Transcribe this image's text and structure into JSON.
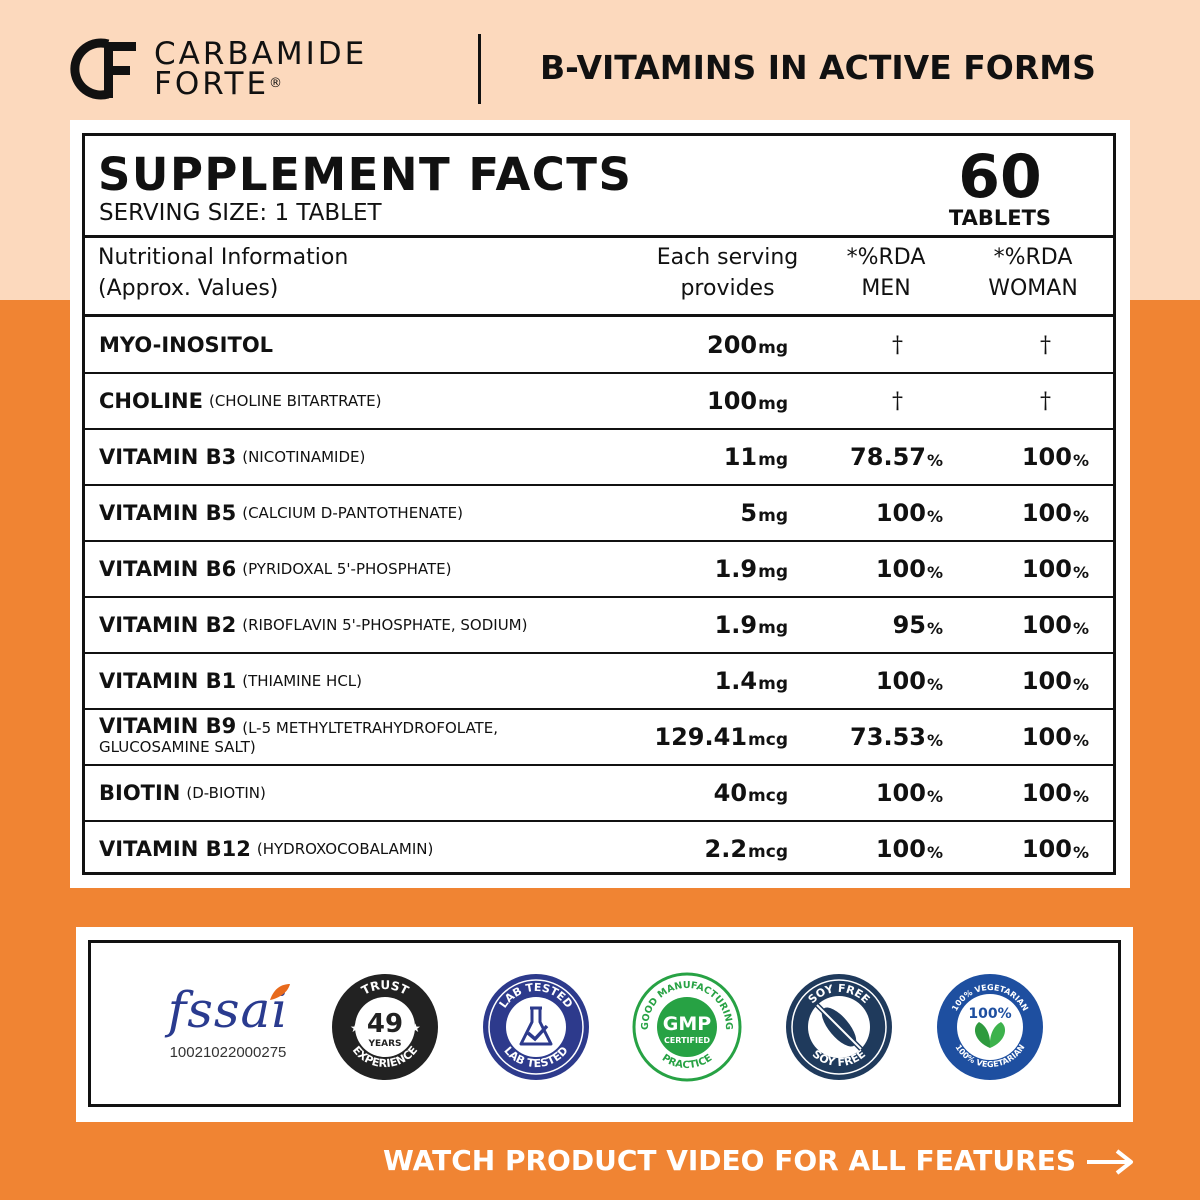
{
  "header": {
    "brand_line1": "CARBAMIDE",
    "brand_line2": "FORTE",
    "brand_mark": "®",
    "brand_logo_letters": "CF",
    "headline": "B-VITAMINS IN ACTIVE FORMS"
  },
  "facts": {
    "title": "SUPPLEMENT FACTS",
    "serving_size": "SERVING SIZE: 1 TABLET",
    "count_number": "60",
    "count_unit": "TABLETS",
    "columns": {
      "nutrition_line1": "Nutritional Information",
      "nutrition_line2": "(Approx. Values)",
      "serving_line1": "Each serving",
      "serving_line2": "provides",
      "men_line1": "*%RDA",
      "men_line2": "MEN",
      "women_line1": "*%RDA",
      "women_line2": "WOMAN"
    },
    "rows": [
      {
        "name": "MYO-INOSITOL",
        "form": "",
        "amount": "200",
        "unit": "mg",
        "men": "†",
        "men_unit": "",
        "women": "†",
        "women_unit": ""
      },
      {
        "name": "CHOLINE",
        "form": "(CHOLINE BITARTRATE)",
        "amount": "100",
        "unit": "mg",
        "men": "†",
        "men_unit": "",
        "women": "†",
        "women_unit": ""
      },
      {
        "name": "VITAMIN B3",
        "form": "(NICOTINAMIDE)",
        "amount": "11",
        "unit": "mg",
        "men": "78.57",
        "men_unit": "%",
        "women": "100",
        "women_unit": "%"
      },
      {
        "name": "VITAMIN B5",
        "form": "(CALCIUM D-PANTOTHENATE)",
        "amount": "5",
        "unit": "mg",
        "men": "100",
        "men_unit": "%",
        "women": "100",
        "women_unit": "%"
      },
      {
        "name": "VITAMIN B6",
        "form": "(PYRIDOXAL 5'-PHOSPHATE)",
        "amount": "1.9",
        "unit": "mg",
        "men": "100",
        "men_unit": "%",
        "women": "100",
        "women_unit": "%"
      },
      {
        "name": "VITAMIN B2",
        "form": "(RIBOFLAVIN 5'-PHOSPHATE, SODIUM)",
        "amount": "1.9",
        "unit": "mg",
        "men": "95",
        "men_unit": "%",
        "women": "100",
        "women_unit": "%"
      },
      {
        "name": "VITAMIN B1",
        "form": "(THIAMINE HCL)",
        "amount": "1.4",
        "unit": "mg",
        "men": "100",
        "men_unit": "%",
        "women": "100",
        "women_unit": "%"
      },
      {
        "name": "VITAMIN B9",
        "form": "(L-5 METHYLTETRAHYDROFOLATE,",
        "form2": "GLUCOSAMINE SALT)",
        "amount": "129.41",
        "unit": "mcg",
        "men": "73.53",
        "men_unit": "%",
        "women": "100",
        "women_unit": "%"
      },
      {
        "name": "BIOTIN",
        "form": "(D-BIOTIN)",
        "amount": "40",
        "unit": "mcg",
        "men": "100",
        "men_unit": "%",
        "women": "100",
        "women_unit": "%"
      },
      {
        "name": "VITAMIN B12",
        "form": "(HYDROXOCOBALAMIN)",
        "amount": "2.2",
        "unit": "mcg",
        "men": "100",
        "men_unit": "%",
        "women": "100",
        "women_unit": "%"
      }
    ]
  },
  "badges": {
    "fssai_word": "fssai",
    "fssai_number": "10021022000275",
    "trust_top": "TRUST",
    "trust_number": "49",
    "trust_years": "YEARS",
    "trust_bottom": "EXPERIENCE",
    "lab_top": "LAB TESTED",
    "lab_bottom": "LAB TESTED",
    "gmp_ring": "GOOD MANUFACTURING",
    "gmp_center": "GMP",
    "gmp_certified": "CERTIFIED",
    "gmp_bottom": "PRACTICE",
    "soy_top": "SOY FREE",
    "soy_bottom": "SOY FREE",
    "veg_top": "100% VEGETARIAN",
    "veg_center": "100%",
    "veg_bottom": "100% VEGETARIAN"
  },
  "footer": {
    "cta": "WATCH PRODUCT VIDEO FOR ALL FEATURES"
  },
  "colors": {
    "top_band": "#fcd9bd",
    "bottom_band": "#f08433",
    "trust_badge": "#222222",
    "lab_badge": "#2d3a8c",
    "gmp_badge": "#27a244",
    "soy_badge": "#1f3a5c",
    "veg_badge": "#1e4fa0"
  },
  "icons": [
    "cf-logo-icon",
    "fssai-logo-icon",
    "trust-badge-icon",
    "lab-tested-badge-icon",
    "gmp-badge-icon",
    "soy-free-badge-icon",
    "vegetarian-badge-icon",
    "arrow-right-icon"
  ]
}
